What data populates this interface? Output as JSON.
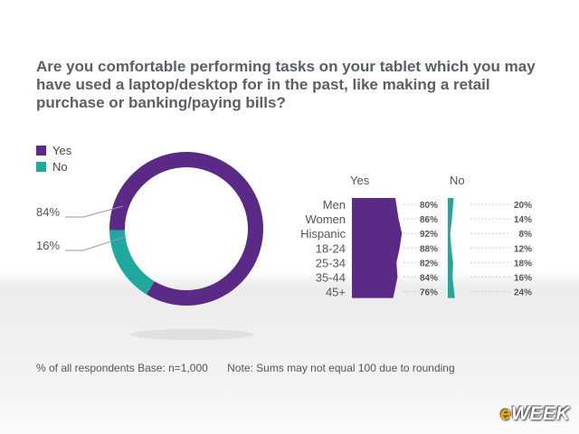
{
  "title": "Are you comfortable performing tasks on your tablet which you may have used a laptop/desktop for in the past, like making a retail purchase or banking/paying bills?",
  "footer": {
    "base": "% of all respondents Base: n=1,000",
    "note": "Note: Sums may not equal 100 due to rounding"
  },
  "logo": {
    "e": "e",
    "rest": "WEEK"
  },
  "colors": {
    "yes": "#5b2a86",
    "no": "#1fa89e"
  },
  "chart_data": [
    {
      "type": "pie",
      "title": "",
      "legend": [
        "Yes",
        "No"
      ],
      "legend_placement": "top-left",
      "slices": [
        {
          "name": "Yes",
          "value": 84,
          "label": "84%"
        },
        {
          "name": "No",
          "value": 16,
          "label": "16%"
        }
      ]
    },
    {
      "type": "bar",
      "orientation": "horizontal",
      "title": "",
      "series_labels": {
        "yes": "Yes",
        "no": "No"
      },
      "categories": [
        "Men",
        "Women",
        "Hispanic",
        "18-24",
        "25-34",
        "35-44",
        "45+"
      ],
      "series": [
        {
          "name": "Yes",
          "values": [
            80,
            86,
            92,
            88,
            82,
            84,
            76
          ]
        },
        {
          "name": "No",
          "values": [
            20,
            14,
            8,
            12,
            18,
            16,
            24
          ]
        }
      ]
    }
  ]
}
